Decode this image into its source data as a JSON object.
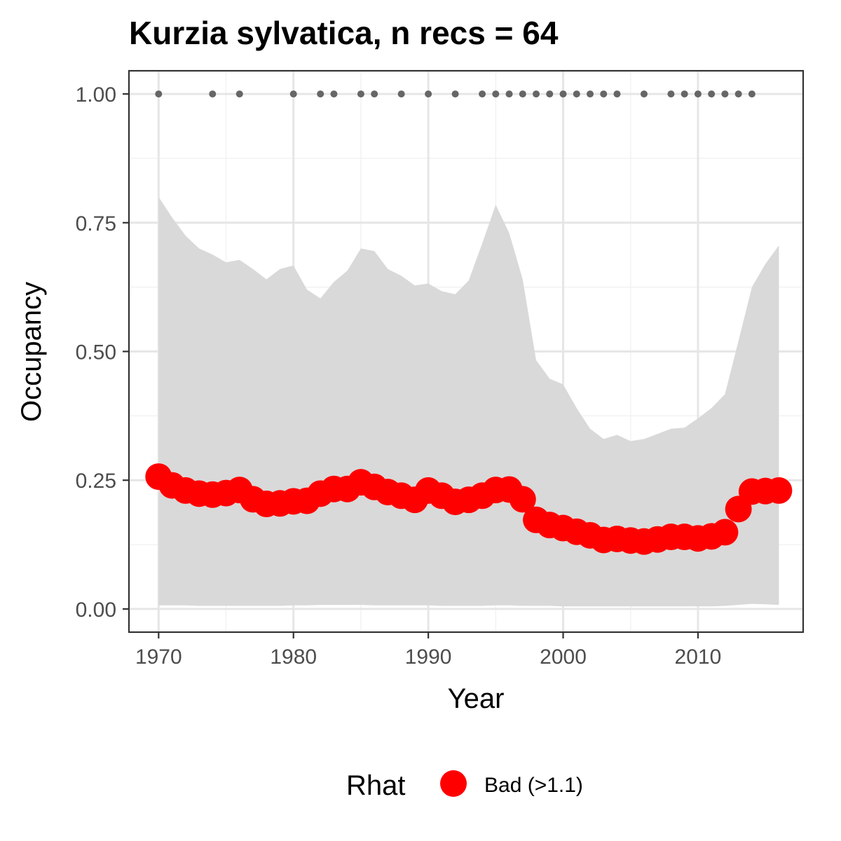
{
  "chart_data": {
    "type": "line",
    "title": "Kurzia sylvatica, n recs = 64",
    "xlabel": "Year",
    "ylabel": "Occupancy",
    "xlim": [
      1967.8,
      2017.8
    ],
    "ylim": [
      -0.045,
      1.045
    ],
    "x_ticks": [
      1970,
      1980,
      1990,
      2000,
      2010
    ],
    "x_tick_labels": [
      "1970",
      "1980",
      "1990",
      "2000",
      "2010"
    ],
    "y_ticks": [
      0,
      0.25,
      0.5,
      0.75,
      1.0
    ],
    "y_tick_labels": [
      "0.00",
      "0.25",
      "0.50",
      "0.75",
      "1.00"
    ],
    "grid": true,
    "legend_position": "bottom",
    "legend": {
      "title": "Rhat",
      "entries": [
        {
          "label": "Bad (>1.1)",
          "color": "#ff0000"
        }
      ]
    },
    "colors": {
      "ribbon": "#d9d9d9",
      "points": "#ff0000",
      "record_dots": "#666666",
      "grid_major": "#e6e6e6",
      "grid_minor": "#f2f2f2",
      "panel_border": "#333333"
    },
    "series": [
      {
        "name": "Bad (>1.1)",
        "x": [
          1970,
          1971,
          1972,
          1973,
          1974,
          1975,
          1976,
          1977,
          1978,
          1979,
          1980,
          1981,
          1982,
          1983,
          1984,
          1985,
          1986,
          1987,
          1988,
          1989,
          1990,
          1991,
          1992,
          1993,
          1994,
          1995,
          1996,
          1997,
          1998,
          1999,
          2000,
          2001,
          2002,
          2003,
          2004,
          2005,
          2006,
          2007,
          2008,
          2009,
          2010,
          2011,
          2012,
          2013,
          2014,
          2015,
          2016
        ],
        "y": [
          0.257,
          0.24,
          0.23,
          0.224,
          0.222,
          0.225,
          0.231,
          0.213,
          0.204,
          0.205,
          0.209,
          0.21,
          0.224,
          0.233,
          0.233,
          0.246,
          0.237,
          0.227,
          0.22,
          0.212,
          0.23,
          0.22,
          0.208,
          0.212,
          0.22,
          0.231,
          0.232,
          0.213,
          0.173,
          0.163,
          0.157,
          0.15,
          0.143,
          0.134,
          0.136,
          0.133,
          0.131,
          0.135,
          0.14,
          0.14,
          0.137,
          0.141,
          0.149,
          0.194,
          0.228,
          0.229,
          0.23
        ],
        "ribbon_upper": [
          0.8,
          0.76,
          0.725,
          0.7,
          0.688,
          0.673,
          0.678,
          0.66,
          0.64,
          0.66,
          0.667,
          0.62,
          0.603,
          0.635,
          0.657,
          0.7,
          0.695,
          0.66,
          0.647,
          0.628,
          0.632,
          0.617,
          0.611,
          0.638,
          0.71,
          0.785,
          0.73,
          0.64,
          0.483,
          0.447,
          0.436,
          0.39,
          0.35,
          0.33,
          0.338,
          0.326,
          0.33,
          0.34,
          0.35,
          0.352,
          0.37,
          0.39,
          0.417,
          0.52,
          0.625,
          0.67,
          0.706
        ],
        "ribbon_lower": [
          0.007,
          0.007,
          0.007,
          0.006,
          0.006,
          0.006,
          0.006,
          0.006,
          0.006,
          0.006,
          0.007,
          0.007,
          0.008,
          0.008,
          0.008,
          0.008,
          0.007,
          0.007,
          0.007,
          0.007,
          0.007,
          0.006,
          0.006,
          0.006,
          0.006,
          0.007,
          0.007,
          0.006,
          0.006,
          0.006,
          0.005,
          0.005,
          0.005,
          0.005,
          0.005,
          0.005,
          0.005,
          0.005,
          0.005,
          0.005,
          0.005,
          0.005,
          0.006,
          0.008,
          0.01,
          0.009,
          0.008
        ]
      }
    ],
    "records": {
      "x": [
        1970,
        1974,
        1976,
        1980,
        1982,
        1983,
        1985,
        1986,
        1988,
        1990,
        1992,
        1994,
        1995,
        1996,
        1997,
        1998,
        1999,
        2000,
        2001,
        2002,
        2003,
        2004,
        2006,
        2008,
        2009,
        2010,
        2011,
        2012,
        2013,
        2014
      ],
      "y": 1.0
    }
  }
}
